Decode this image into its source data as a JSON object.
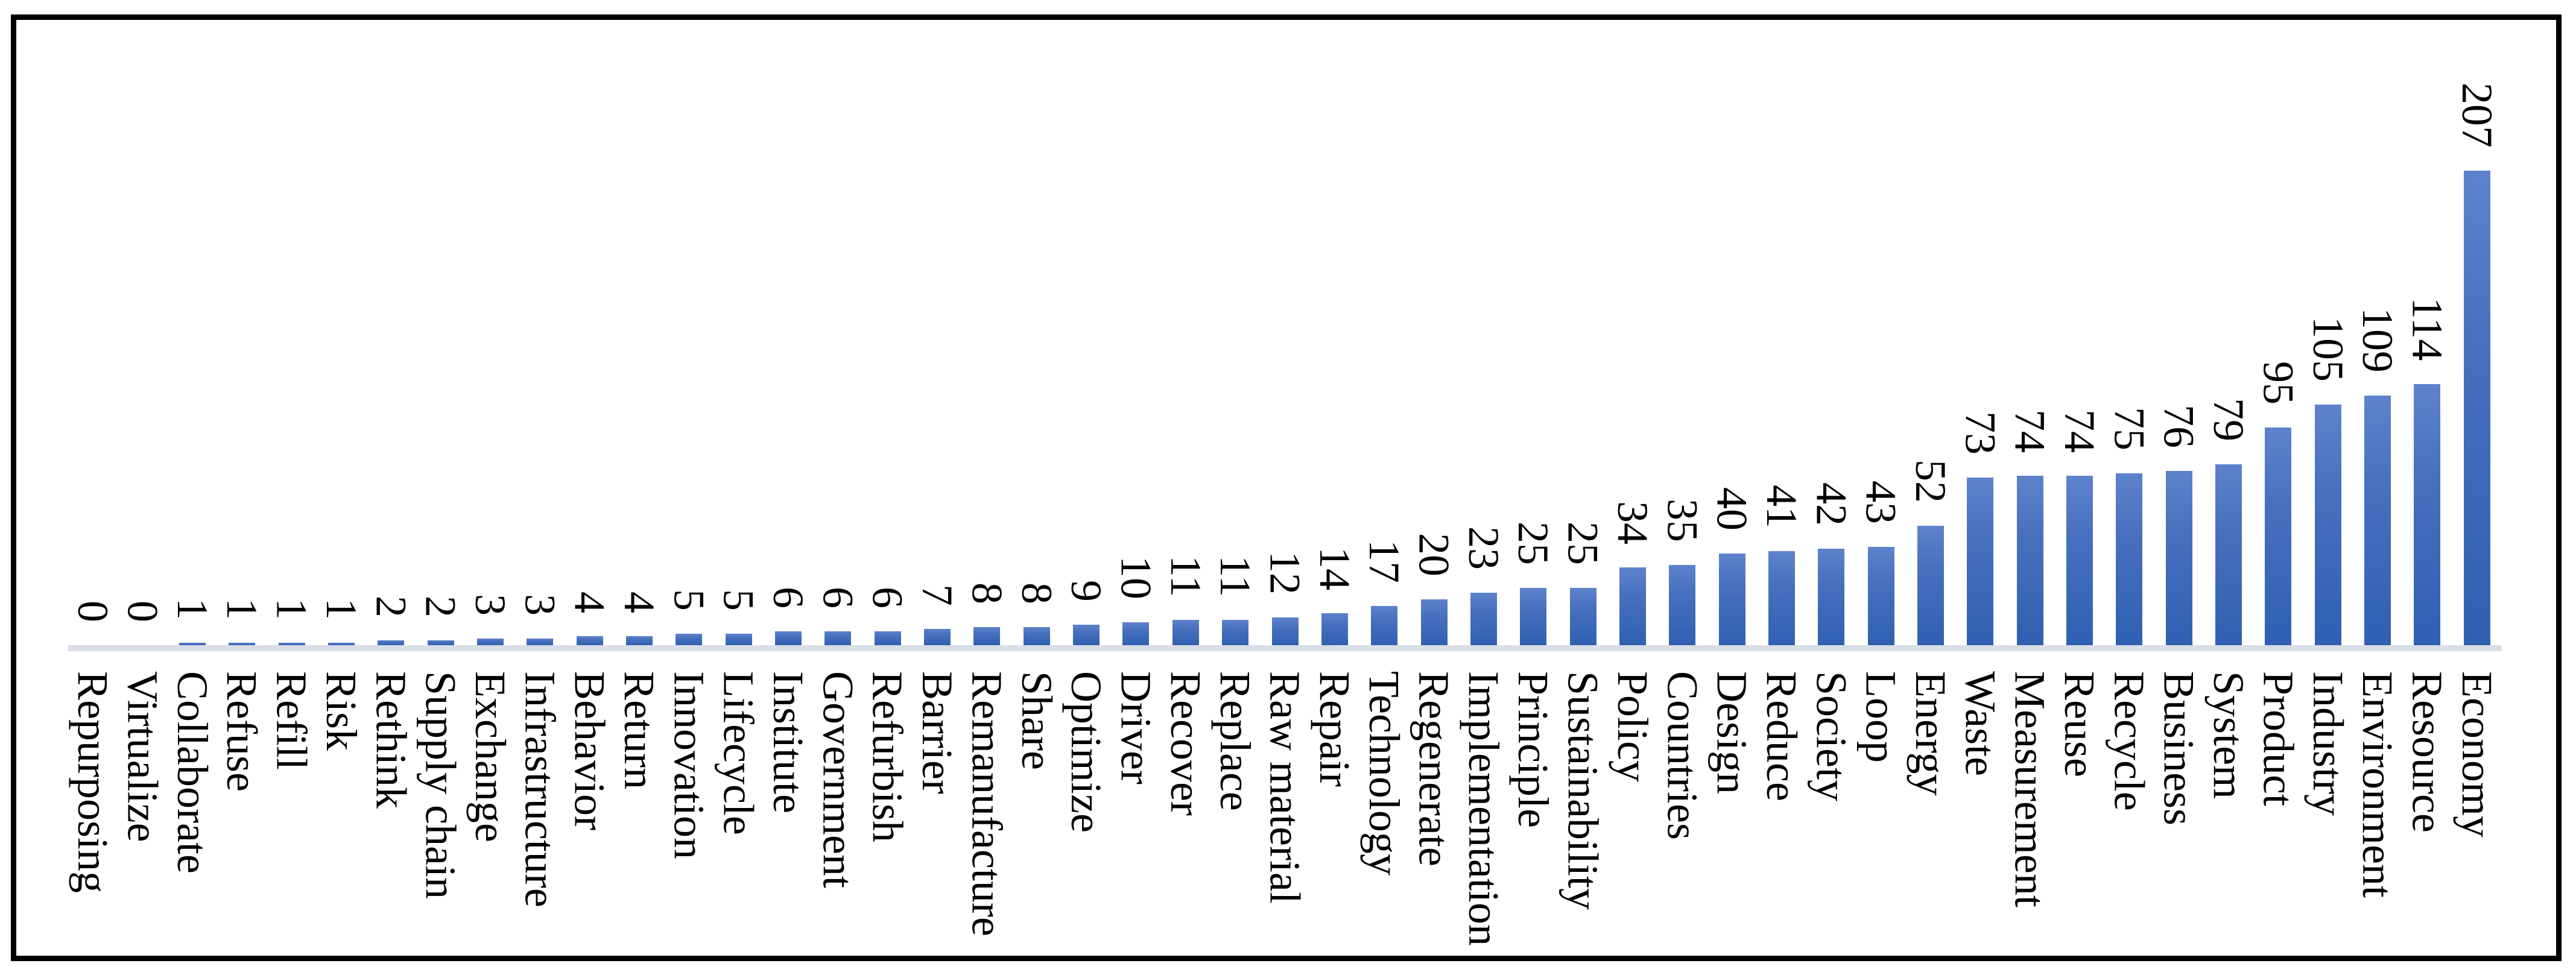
{
  "chart_data": {
    "type": "bar",
    "orientation": "vertical",
    "categories": [
      "Repurposing",
      "Virtualize",
      "Collaborate",
      "Refuse",
      "Refill",
      "Risk",
      "Rethink",
      "Supply chain",
      "Exchange",
      "Infrastructure",
      "Behavior",
      "Return",
      "Innovation",
      "Lifecycle",
      "Institute",
      "Government",
      "Refurbish",
      "Barrier",
      "Remanufacture",
      "Share",
      "Optimize",
      "Driver",
      "Recover",
      "Replace",
      "Raw material",
      "Repair",
      "Technology",
      "Regenerate",
      "Implementation",
      "Principle",
      "Sustainability",
      "Policy",
      "Countries",
      "Design",
      "Reduce",
      "Society",
      "Loop",
      "Energy",
      "Waste",
      "Measurement",
      "Reuse",
      "Recycle",
      "Business",
      "System",
      "Product",
      "Industry",
      "Environment",
      "Resource",
      "Economy"
    ],
    "values": [
      0,
      0,
      1,
      1,
      1,
      1,
      2,
      2,
      3,
      3,
      4,
      4,
      5,
      5,
      6,
      6,
      6,
      7,
      8,
      8,
      9,
      10,
      11,
      11,
      12,
      14,
      17,
      20,
      23,
      25,
      25,
      34,
      35,
      40,
      41,
      42,
      43,
      52,
      73,
      74,
      74,
      75,
      76,
      79,
      95,
      105,
      109,
      114,
      207
    ],
    "ylim": [
      0,
      207
    ],
    "gridlines": false,
    "legend": false,
    "y_axis_labels": false,
    "data_labels": "outside-end",
    "label_rotation_deg": 90,
    "colors": {
      "bar_gradient_top": "#5E83CC",
      "bar_gradient_bottom": "#3060B2",
      "axis_band": "#DADEE7",
      "text": "#000000",
      "frame": "#000000",
      "background": "#FFFFFF"
    }
  }
}
